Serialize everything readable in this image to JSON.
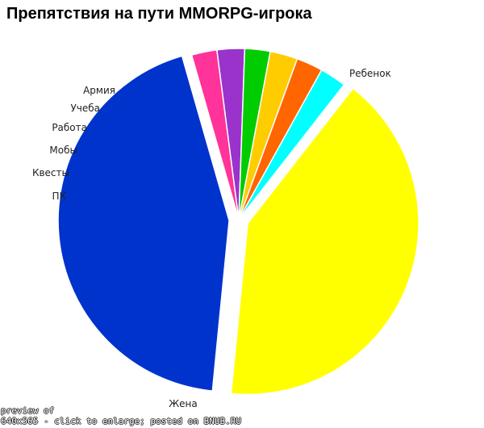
{
  "chart_data": {
    "type": "pie",
    "title": "Препятствия на пути MMORPG-игрока",
    "slices": [
      {
        "label": "Ребенок",
        "value": 41,
        "color": "#ffff00",
        "exploded": true
      },
      {
        "label": "Жена",
        "value": 44,
        "color": "#0033cc",
        "exploded": true
      },
      {
        "label": "ПК",
        "value": 2.4,
        "color": "#ff3399",
        "exploded": false
      },
      {
        "label": "Квесты",
        "value": 2.6,
        "color": "#9933cc",
        "exploded": false
      },
      {
        "label": "Мобы",
        "value": 2.4,
        "color": "#00cc00",
        "exploded": false
      },
      {
        "label": "Работа",
        "value": 2.6,
        "color": "#ffcc00",
        "exploded": false
      },
      {
        "label": "Учеба",
        "value": 2.5,
        "color": "#ff6600",
        "exploded": false
      },
      {
        "label": "Армия",
        "value": 2.5,
        "color": "#00ffff",
        "exploded": false
      }
    ]
  },
  "watermark": {
    "line1": "preview of",
    "line2": "640x565 - click to enlarge; posted on BNUB.RU"
  }
}
